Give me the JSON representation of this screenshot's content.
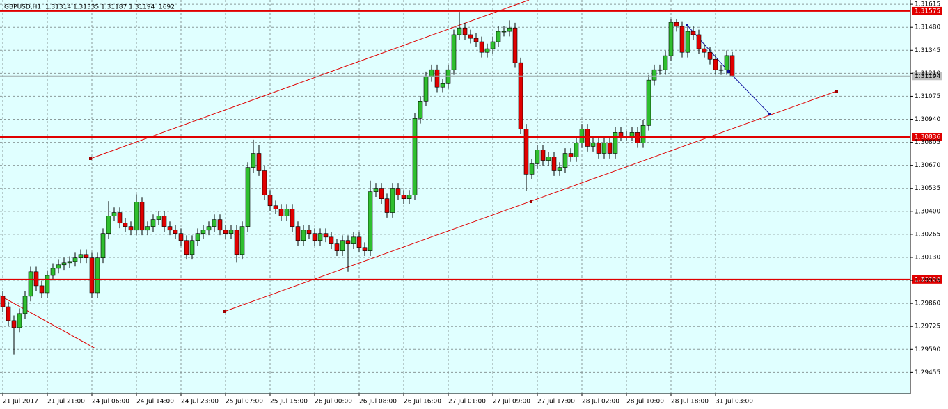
{
  "chart_data": {
    "type": "candlestick",
    "title": "GBPUSD,H1  1.31314 1.31335 1.31187 1.31194  1692",
    "up_color": "#2fbf2f",
    "down_color": "#e00000",
    "grid": true,
    "ylim": [
      1.2933,
      1.3164
    ],
    "yticks": [
      1.31615,
      {
        "value": 1.3148,
        "label": "1.31480"
      },
      1.31345,
      {
        "value": 1.3121,
        "label": "1.31210"
      },
      1.31075,
      {
        "value": 1.3094,
        "label": "1.30940"
      },
      1.30805,
      {
        "value": 1.3067,
        "label": "1.30670"
      },
      1.30535,
      {
        "value": 1.304,
        "label": "1.30400"
      },
      1.30265,
      {
        "value": 1.3013,
        "label": "1.30130"
      },
      1.29995,
      {
        "value": 1.2986,
        "label": "1.29860"
      },
      1.29725,
      {
        "value": 1.2959,
        "label": "1.29590"
      },
      1.29455
    ],
    "levels": [
      1.31575,
      1.30836,
      {
        "value": 1.3,
        "label": "1.30000"
      }
    ],
    "last_price": 1.31194,
    "categories": [
      "21 Jul 2017",
      null,
      null,
      null,
      null,
      null,
      null,
      null,
      "21 Jul 21:00",
      null,
      null,
      null,
      null,
      null,
      null,
      null,
      "24 Jul 06:00",
      null,
      null,
      null,
      null,
      null,
      null,
      null,
      "24 Jul 14:00",
      null,
      null,
      null,
      null,
      null,
      null,
      null,
      "24 Jul 23:00",
      null,
      null,
      null,
      null,
      null,
      null,
      null,
      "25 Jul 07:00",
      null,
      null,
      null,
      null,
      null,
      null,
      null,
      "25 Jul 15:00",
      null,
      null,
      null,
      null,
      null,
      null,
      null,
      "26 Jul 00:00",
      null,
      null,
      null,
      null,
      null,
      null,
      null,
      "26 Jul 08:00",
      null,
      null,
      null,
      null,
      null,
      null,
      null,
      "26 Jul 16:00",
      null,
      null,
      null,
      null,
      null,
      null,
      null,
      "27 Jul 01:00",
      null,
      null,
      null,
      null,
      null,
      null,
      null,
      "27 Jul 09:00",
      null,
      null,
      null,
      null,
      null,
      null,
      null,
      "27 Jul 17:00",
      null,
      null,
      null,
      null,
      null,
      null,
      null,
      "28 Jul 02:00",
      null,
      null,
      null,
      null,
      null,
      null,
      null,
      "28 Jul 10:00",
      null,
      null,
      null,
      null,
      null,
      null,
      null,
      "28 Jul 18:00",
      null,
      null,
      null,
      null,
      null,
      null,
      null,
      "31 Jul 03:00",
      null,
      null,
      null
    ],
    "open": [
      1.29902,
      1.2984,
      1.29759,
      1.29718,
      1.298,
      1.29902,
      1.30045,
      1.29963,
      1.29922,
      1.30024,
      1.30065,
      1.30086,
      1.30098,
      1.30106,
      1.30127,
      1.30147,
      1.30127,
      1.29922,
      1.30127,
      1.3027,
      1.30372,
      1.30393,
      1.30331,
      1.30311,
      1.3029,
      1.30454,
      1.3029,
      1.30311,
      1.30352,
      1.30372,
      1.30311,
      1.3029,
      1.3027,
      1.30229,
      1.30147,
      1.30229,
      1.3027,
      1.3029,
      1.30311,
      1.30352,
      1.3029,
      1.3027,
      1.3029,
      1.30147,
      1.30311,
      1.30658,
      1.3074,
      1.30638,
      1.30495,
      1.30433,
      1.30413,
      1.30372,
      1.30413,
      1.30311,
      1.30229,
      1.3029,
      1.3027,
      1.30229,
      1.3027,
      1.30249,
      1.30209,
      1.30168,
      1.30229,
      1.30209,
      1.30249,
      1.30188,
      1.30168,
      1.30515,
      1.30536,
      1.30474,
      1.30393,
      1.30536,
      1.30495,
      1.30474,
      1.30495,
      1.30945,
      1.31047,
      1.3119,
      1.31231,
      1.31129,
      1.31149,
      1.31231,
      1.31436,
      1.31476,
      1.31436,
      1.31415,
      1.31395,
      1.31333,
      1.31354,
      1.31395,
      1.31456,
      1.31456,
      1.31476,
      1.31272,
      1.30883,
      1.30618,
      1.30679,
      1.30761,
      1.30699,
      1.3072,
      1.30638,
      1.30658,
      1.3074,
      1.3072,
      1.30802,
      1.30883,
      1.30781,
      1.30802,
      1.3074,
      1.30802,
      1.3074,
      1.30863,
      1.30842,
      1.30842,
      1.30863,
      1.30802,
      1.30904,
      1.3117,
      1.31231,
      1.31231,
      1.31313,
      1.31509,
      1.31485,
      1.31333,
      1.31456,
      1.31436,
      1.31354,
      1.31333,
      1.31292,
      1.31231,
      1.31231,
      1.31314
    ],
    "high": [
      1.29932,
      1.2987,
      1.29789,
      1.2983,
      1.29932,
      1.30075,
      1.30075,
      1.29993,
      1.30054,
      1.30095,
      1.30116,
      1.30128,
      1.30136,
      1.30157,
      1.30177,
      1.30177,
      1.30157,
      1.30157,
      1.303,
      1.3046,
      1.30423,
      1.30423,
      1.30361,
      1.30341,
      1.305,
      1.30484,
      1.30341,
      1.30382,
      1.30402,
      1.30402,
      1.30341,
      1.3032,
      1.303,
      1.30259,
      1.30259,
      1.303,
      1.3032,
      1.30341,
      1.30382,
      1.30382,
      1.3032,
      1.3032,
      1.3032,
      1.30341,
      1.30688,
      1.3082,
      1.3079,
      1.30668,
      1.30525,
      1.30463,
      1.30443,
      1.30443,
      1.30443,
      1.30341,
      1.3032,
      1.3032,
      1.303,
      1.303,
      1.303,
      1.30279,
      1.30239,
      1.30259,
      1.30259,
      1.30279,
      1.30279,
      1.30218,
      1.3058,
      1.30566,
      1.30566,
      1.30504,
      1.30566,
      1.30566,
      1.30525,
      1.30525,
      1.30975,
      1.31077,
      1.3122,
      1.31261,
      1.31261,
      1.31179,
      1.31261,
      1.31466,
      1.3157,
      1.31506,
      1.31466,
      1.31445,
      1.31425,
      1.31384,
      1.31425,
      1.31486,
      1.31486,
      1.3152,
      1.31506,
      1.31302,
      1.30913,
      1.30709,
      1.30791,
      1.30791,
      1.3075,
      1.3075,
      1.30688,
      1.3077,
      1.3077,
      1.30832,
      1.30913,
      1.30913,
      1.30832,
      1.30832,
      1.30832,
      1.30832,
      1.30893,
      1.30893,
      1.30872,
      1.30893,
      1.30893,
      1.30934,
      1.312,
      1.31261,
      1.31261,
      1.31343,
      1.3153,
      1.3153,
      1.31515,
      1.31486,
      1.31486,
      1.31466,
      1.31384,
      1.31363,
      1.31322,
      1.31261,
      1.31344,
      1.31335
    ],
    "low": [
      1.2981,
      1.29729,
      1.2956,
      1.29688,
      1.2977,
      1.29872,
      1.29933,
      1.29892,
      1.29892,
      1.29994,
      1.30035,
      1.30056,
      1.30068,
      1.30076,
      1.30097,
      1.30097,
      1.29892,
      1.29892,
      1.30097,
      1.3024,
      1.30342,
      1.30301,
      1.30281,
      1.3026,
      1.3026,
      1.3026,
      1.3026,
      1.30281,
      1.30322,
      1.30281,
      1.3026,
      1.3024,
      1.30199,
      1.30117,
      1.30117,
      1.30199,
      1.3024,
      1.3026,
      1.30281,
      1.3026,
      1.3024,
      1.3024,
      1.301,
      1.30117,
      1.30281,
      1.30628,
      1.30608,
      1.30465,
      1.30403,
      1.30383,
      1.30342,
      1.30342,
      1.30281,
      1.30199,
      1.30199,
      1.3024,
      1.30199,
      1.30199,
      1.30219,
      1.30179,
      1.30138,
      1.30138,
      1.30045,
      1.30179,
      1.30158,
      1.30138,
      1.30138,
      1.30485,
      1.30444,
      1.30363,
      1.30363,
      1.30465,
      1.30444,
      1.30444,
      1.30465,
      1.30915,
      1.31017,
      1.3116,
      1.31099,
      1.31099,
      1.31119,
      1.31201,
      1.31406,
      1.31406,
      1.31385,
      1.31365,
      1.31303,
      1.31303,
      1.31324,
      1.31365,
      1.31426,
      1.31426,
      1.31242,
      1.30853,
      1.3052,
      1.30588,
      1.30649,
      1.30669,
      1.30669,
      1.30608,
      1.30608,
      1.30628,
      1.3069,
      1.3069,
      1.30772,
      1.30751,
      1.30751,
      1.3071,
      1.3071,
      1.3071,
      1.3071,
      1.30812,
      1.30812,
      1.30812,
      1.30772,
      1.30772,
      1.30874,
      1.3114,
      1.31201,
      1.31201,
      1.31283,
      1.31455,
      1.31303,
      1.31303,
      1.31406,
      1.31324,
      1.31303,
      1.31262,
      1.31201,
      1.31201,
      1.31201,
      1.31187
    ],
    "close": [
      1.2984,
      1.29759,
      1.29718,
      1.298,
      1.29902,
      1.30045,
      1.29963,
      1.29922,
      1.30024,
      1.30065,
      1.30086,
      1.30098,
      1.30106,
      1.30127,
      1.30147,
      1.30127,
      1.29922,
      1.30127,
      1.3027,
      1.30372,
      1.30393,
      1.30331,
      1.30311,
      1.3029,
      1.30454,
      1.3029,
      1.30311,
      1.30352,
      1.30372,
      1.30311,
      1.3029,
      1.3027,
      1.30229,
      1.30147,
      1.30229,
      1.3027,
      1.3029,
      1.30311,
      1.30352,
      1.3029,
      1.3027,
      1.3029,
      1.30147,
      1.30311,
      1.30658,
      1.3074,
      1.30638,
      1.30495,
      1.30433,
      1.30413,
      1.30372,
      1.30413,
      1.30311,
      1.30229,
      1.3029,
      1.3027,
      1.30229,
      1.3027,
      1.30249,
      1.30209,
      1.30168,
      1.30229,
      1.30209,
      1.30249,
      1.30188,
      1.30168,
      1.30515,
      1.30536,
      1.30474,
      1.30393,
      1.30536,
      1.30495,
      1.30474,
      1.30495,
      1.30945,
      1.31047,
      1.3119,
      1.31231,
      1.31129,
      1.31149,
      1.31231,
      1.31436,
      1.31476,
      1.31436,
      1.31415,
      1.31395,
      1.31333,
      1.31354,
      1.31395,
      1.31456,
      1.31456,
      1.31476,
      1.31272,
      1.30883,
      1.30618,
      1.30679,
      1.30761,
      1.30699,
      1.3072,
      1.30638,
      1.30658,
      1.3074,
      1.3072,
      1.30802,
      1.30883,
      1.30781,
      1.30802,
      1.3074,
      1.30802,
      1.3074,
      1.30863,
      1.30842,
      1.30842,
      1.30863,
      1.30802,
      1.30904,
      1.3117,
      1.31231,
      1.31231,
      1.31313,
      1.31509,
      1.31485,
      1.31333,
      1.31456,
      1.31436,
      1.31354,
      1.31333,
      1.31292,
      1.31231,
      1.31231,
      1.31314,
      1.31194
    ]
  }
}
